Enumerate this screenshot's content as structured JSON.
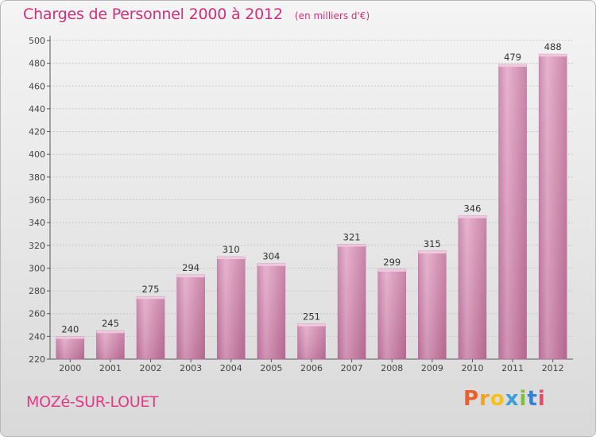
{
  "header": {
    "title": "Charges de Personnel 2000 à 2012",
    "subtitle": "(en milliers d'€)"
  },
  "footer": {
    "commune": "MOZé-SUR-LOUET",
    "logo_letters": [
      "P",
      "r",
      "o",
      "x",
      "i",
      "t",
      "i"
    ],
    "logo_colors": [
      "#e8612c",
      "#f4a21c",
      "#f6c21a",
      "#3aa0d8",
      "#7bbf3a",
      "#3b7fd0",
      "#e84a6a"
    ]
  },
  "colors": {
    "bar": "#d988b4",
    "bar_light": "#e8a9cb",
    "bar_dark": "#b86c95",
    "grid": "#c8c8c8"
  },
  "chart_data": {
    "type": "bar",
    "categories": [
      "2000",
      "2001",
      "2002",
      "2003",
      "2004",
      "2005",
      "2006",
      "2007",
      "2008",
      "2009",
      "2010",
      "2011",
      "2012"
    ],
    "values": [
      240,
      245,
      275,
      294,
      310,
      304,
      251,
      321,
      299,
      315,
      346,
      479,
      488
    ],
    "ylim": [
      220,
      500
    ],
    "yticks": [
      220,
      240,
      260,
      280,
      300,
      320,
      340,
      360,
      380,
      400,
      420,
      440,
      460,
      480,
      500
    ],
    "grid": true,
    "title": "Charges de Personnel 2000 à 2012",
    "xlabel": "",
    "ylabel": ""
  }
}
